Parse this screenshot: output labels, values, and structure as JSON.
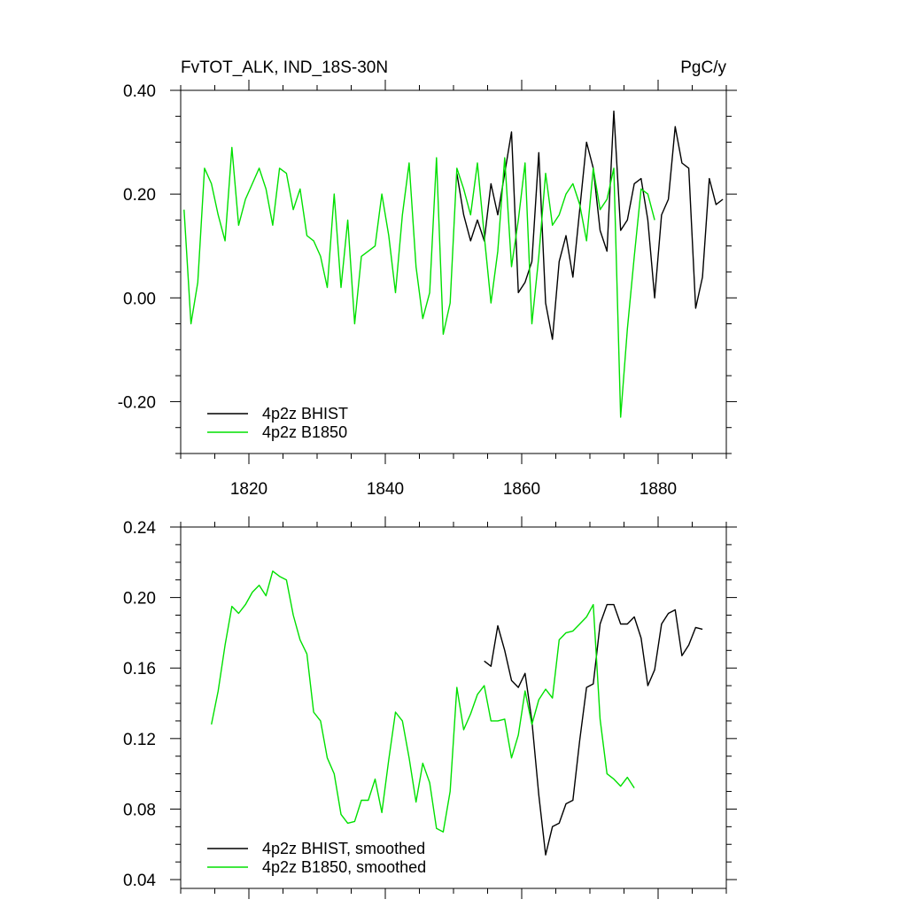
{
  "header": {
    "title": "FvTOT_ALK, IND_18S-30N",
    "units": "PgC/y"
  },
  "chart_data": [
    {
      "type": "line",
      "panel": "top",
      "xlim": [
        1810,
        1890
      ],
      "ylim": [
        -0.3,
        0.4
      ],
      "x_major_ticks": [
        1820,
        1840,
        1860,
        1880
      ],
      "x_tick_labels": [
        "1820",
        "1840",
        "1860",
        "1880"
      ],
      "y_major_ticks": [
        -0.2,
        0.0,
        0.2,
        0.4
      ],
      "y_tick_labels": [
        "-0.20",
        "0.00",
        "0.20",
        "0.40"
      ],
      "legend_position": "bottom-left",
      "series": [
        {
          "name": "4p2z BHIST",
          "color": "#000000",
          "x": [
            1850.5,
            1851.5,
            1852.5,
            1853.5,
            1854.5,
            1855.5,
            1856.5,
            1857.5,
            1858.5,
            1859.5,
            1860.5,
            1861.5,
            1862.5,
            1863.5,
            1864.5,
            1865.5,
            1866.5,
            1867.5,
            1868.5,
            1869.5,
            1870.5,
            1871.5,
            1872.5,
            1873.5,
            1874.5,
            1875.5,
            1876.5,
            1877.5,
            1878.5,
            1879.5,
            1880.5,
            1881.5,
            1882.5,
            1883.5,
            1884.5,
            1885.5,
            1886.5,
            1887.5,
            1888.5,
            1889.5
          ],
          "y": [
            0.24,
            0.16,
            0.11,
            0.15,
            0.11,
            0.22,
            0.16,
            0.24,
            0.32,
            0.01,
            0.03,
            0.07,
            0.28,
            -0.01,
            -0.08,
            0.07,
            0.12,
            0.04,
            0.17,
            0.3,
            0.25,
            0.13,
            0.09,
            0.36,
            0.13,
            0.15,
            0.22,
            0.23,
            0.15,
            0.0,
            0.16,
            0.19,
            0.33,
            0.26,
            0.25,
            -0.02,
            0.04,
            0.23,
            0.18,
            0.19
          ]
        },
        {
          "name": "4p2z B1850",
          "color": "#00e000",
          "x": [
            1810.5,
            1811.5,
            1812.5,
            1813.5,
            1814.5,
            1815.5,
            1816.5,
            1817.5,
            1818.5,
            1819.5,
            1820.5,
            1821.5,
            1822.5,
            1823.5,
            1824.5,
            1825.5,
            1826.5,
            1827.5,
            1828.5,
            1829.5,
            1830.5,
            1831.5,
            1832.5,
            1833.5,
            1834.5,
            1835.5,
            1836.5,
            1837.5,
            1838.5,
            1839.5,
            1840.5,
            1841.5,
            1842.5,
            1843.5,
            1844.5,
            1845.5,
            1846.5,
            1847.5,
            1848.5,
            1849.5,
            1850.5,
            1851.5,
            1852.5,
            1853.5,
            1854.5,
            1855.5,
            1856.5,
            1857.5,
            1858.5,
            1859.5,
            1860.5,
            1861.5,
            1862.5,
            1863.5,
            1864.5,
            1865.5,
            1866.5,
            1867.5,
            1868.5,
            1869.5,
            1870.5,
            1871.5,
            1872.5,
            1873.5,
            1874.5,
            1875.5,
            1876.5,
            1877.5,
            1878.5,
            1879.5
          ],
          "y": [
            0.17,
            -0.05,
            0.03,
            0.25,
            0.22,
            0.16,
            0.11,
            0.29,
            0.14,
            0.19,
            0.22,
            0.25,
            0.21,
            0.14,
            0.25,
            0.24,
            0.17,
            0.21,
            0.12,
            0.11,
            0.08,
            0.02,
            0.2,
            0.02,
            0.15,
            -0.05,
            0.08,
            0.09,
            0.1,
            0.2,
            0.12,
            0.01,
            0.16,
            0.26,
            0.06,
            -0.04,
            0.01,
            0.27,
            -0.07,
            -0.01,
            0.25,
            0.21,
            0.16,
            0.26,
            0.12,
            -0.01,
            0.09,
            0.27,
            0.06,
            0.15,
            0.26,
            -0.05,
            0.08,
            0.24,
            0.14,
            0.16,
            0.2,
            0.22,
            0.18,
            0.11,
            0.25,
            0.17,
            0.19,
            0.25,
            -0.23,
            -0.06,
            0.08,
            0.21,
            0.2,
            0.15
          ]
        }
      ]
    },
    {
      "type": "line",
      "panel": "bottom",
      "xlim": [
        1810,
        1890
      ],
      "ylim": [
        0.035,
        0.24
      ],
      "x_major_ticks": [
        1820,
        1840,
        1860,
        1880
      ],
      "y_major_ticks": [
        0.04,
        0.08,
        0.12,
        0.16,
        0.2,
        0.24
      ],
      "y_tick_labels": [
        "0.04",
        "0.08",
        "0.12",
        "0.16",
        "0.20",
        "0.24"
      ],
      "legend_position": "bottom-left",
      "series": [
        {
          "name": "4p2z BHIST, smoothed",
          "color": "#000000",
          "x": [
            1854.5,
            1855.5,
            1856.5,
            1857.5,
            1858.5,
            1859.5,
            1860.5,
            1861.5,
            1862.5,
            1863.5,
            1864.5,
            1865.5,
            1866.5,
            1867.5,
            1868.5,
            1869.5,
            1870.5,
            1871.5,
            1872.5,
            1873.5,
            1874.5,
            1875.5,
            1876.5,
            1877.5,
            1878.5,
            1879.5,
            1880.5,
            1881.5,
            1882.5,
            1883.5,
            1884.5,
            1885.5,
            1886.5
          ],
          "y": [
            0.164,
            0.161,
            0.184,
            0.17,
            0.153,
            0.149,
            0.157,
            0.13,
            0.088,
            0.054,
            0.07,
            0.072,
            0.083,
            0.085,
            0.119,
            0.149,
            0.151,
            0.185,
            0.196,
            0.196,
            0.185,
            0.185,
            0.189,
            0.177,
            0.15,
            0.159,
            0.185,
            0.191,
            0.193,
            0.167,
            0.173,
            0.183,
            0.182
          ]
        },
        {
          "name": "4p2z B1850, smoothed",
          "color": "#00e000",
          "x": [
            1814.5,
            1815.5,
            1816.5,
            1817.5,
            1818.5,
            1819.5,
            1820.5,
            1821.5,
            1822.5,
            1823.5,
            1824.5,
            1825.5,
            1826.5,
            1827.5,
            1828.5,
            1829.5,
            1830.5,
            1831.5,
            1832.5,
            1833.5,
            1834.5,
            1835.5,
            1836.5,
            1837.5,
            1838.5,
            1839.5,
            1840.5,
            1841.5,
            1842.5,
            1843.5,
            1844.5,
            1845.5,
            1846.5,
            1847.5,
            1848.5,
            1849.5,
            1850.5,
            1851.5,
            1852.5,
            1853.5,
            1854.5,
            1855.5,
            1856.5,
            1857.5,
            1858.5,
            1859.5,
            1860.5,
            1861.5,
            1862.5,
            1863.5,
            1864.5,
            1865.5,
            1866.5,
            1867.5,
            1868.5,
            1869.5,
            1870.5,
            1871.5,
            1872.5,
            1873.5,
            1874.5,
            1875.5,
            1876.5
          ],
          "y": [
            0.128,
            0.147,
            0.173,
            0.195,
            0.191,
            0.196,
            0.203,
            0.207,
            0.201,
            0.215,
            0.212,
            0.21,
            0.19,
            0.176,
            0.168,
            0.135,
            0.13,
            0.109,
            0.1,
            0.077,
            0.072,
            0.073,
            0.085,
            0.085,
            0.097,
            0.078,
            0.108,
            0.135,
            0.13,
            0.109,
            0.084,
            0.106,
            0.095,
            0.069,
            0.067,
            0.09,
            0.149,
            0.125,
            0.134,
            0.145,
            0.15,
            0.13,
            0.13,
            0.131,
            0.109,
            0.122,
            0.147,
            0.128,
            0.142,
            0.148,
            0.143,
            0.176,
            0.18,
            0.181,
            0.185,
            0.189,
            0.196,
            0.131,
            0.1,
            0.097,
            0.093,
            0.098,
            0.092
          ]
        }
      ]
    }
  ]
}
